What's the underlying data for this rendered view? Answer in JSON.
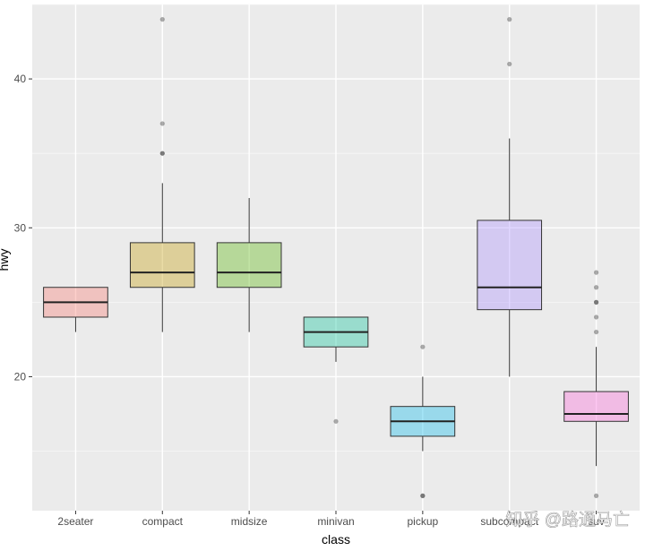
{
  "chart_data": {
    "type": "boxplot",
    "xlabel": "class",
    "ylabel": "hwy",
    "ylim": [
      11,
      45
    ],
    "yticks": [
      20,
      30,
      40
    ],
    "grid": true,
    "categories": [
      "2seater",
      "compact",
      "midsize",
      "minivan",
      "pickup",
      "subcompact",
      "suv"
    ],
    "boxes": [
      {
        "category": "2seater",
        "min": 23,
        "q1": 24,
        "median": 25,
        "q3": 26,
        "max": 26,
        "outliers": [],
        "color": "#F8766D"
      },
      {
        "category": "compact",
        "min": 23,
        "q1": 26,
        "median": 27,
        "q3": 29,
        "max": 33,
        "outliers": [
          35,
          35,
          37,
          44
        ],
        "color": "#C49A00"
      },
      {
        "category": "midsize",
        "min": 23,
        "q1": 26,
        "median": 27,
        "q3": 29,
        "max": 32,
        "outliers": [],
        "color": "#53B400"
      },
      {
        "category": "minivan",
        "min": 21,
        "q1": 22,
        "median": 23,
        "q3": 24,
        "max": 24,
        "outliers": [
          17
        ],
        "color": "#00C094"
      },
      {
        "category": "pickup",
        "min": 15,
        "q1": 16,
        "median": 17,
        "q3": 18,
        "max": 20,
        "outliers": [
          12,
          12,
          22
        ],
        "color": "#00B6EB"
      },
      {
        "category": "subcompact",
        "min": 20,
        "q1": 24.5,
        "median": 26,
        "q3": 30.5,
        "max": 36,
        "outliers": [
          41,
          44
        ],
        "color": "#A58AFF"
      },
      {
        "category": "suv",
        "min": 14,
        "q1": 17,
        "median": 17.5,
        "q3": 19,
        "max": 22,
        "outliers": [
          12,
          23,
          24,
          25,
          25,
          26,
          27
        ],
        "color": "#FB61D7"
      }
    ],
    "watermark": "知乎 @路通马亡"
  }
}
